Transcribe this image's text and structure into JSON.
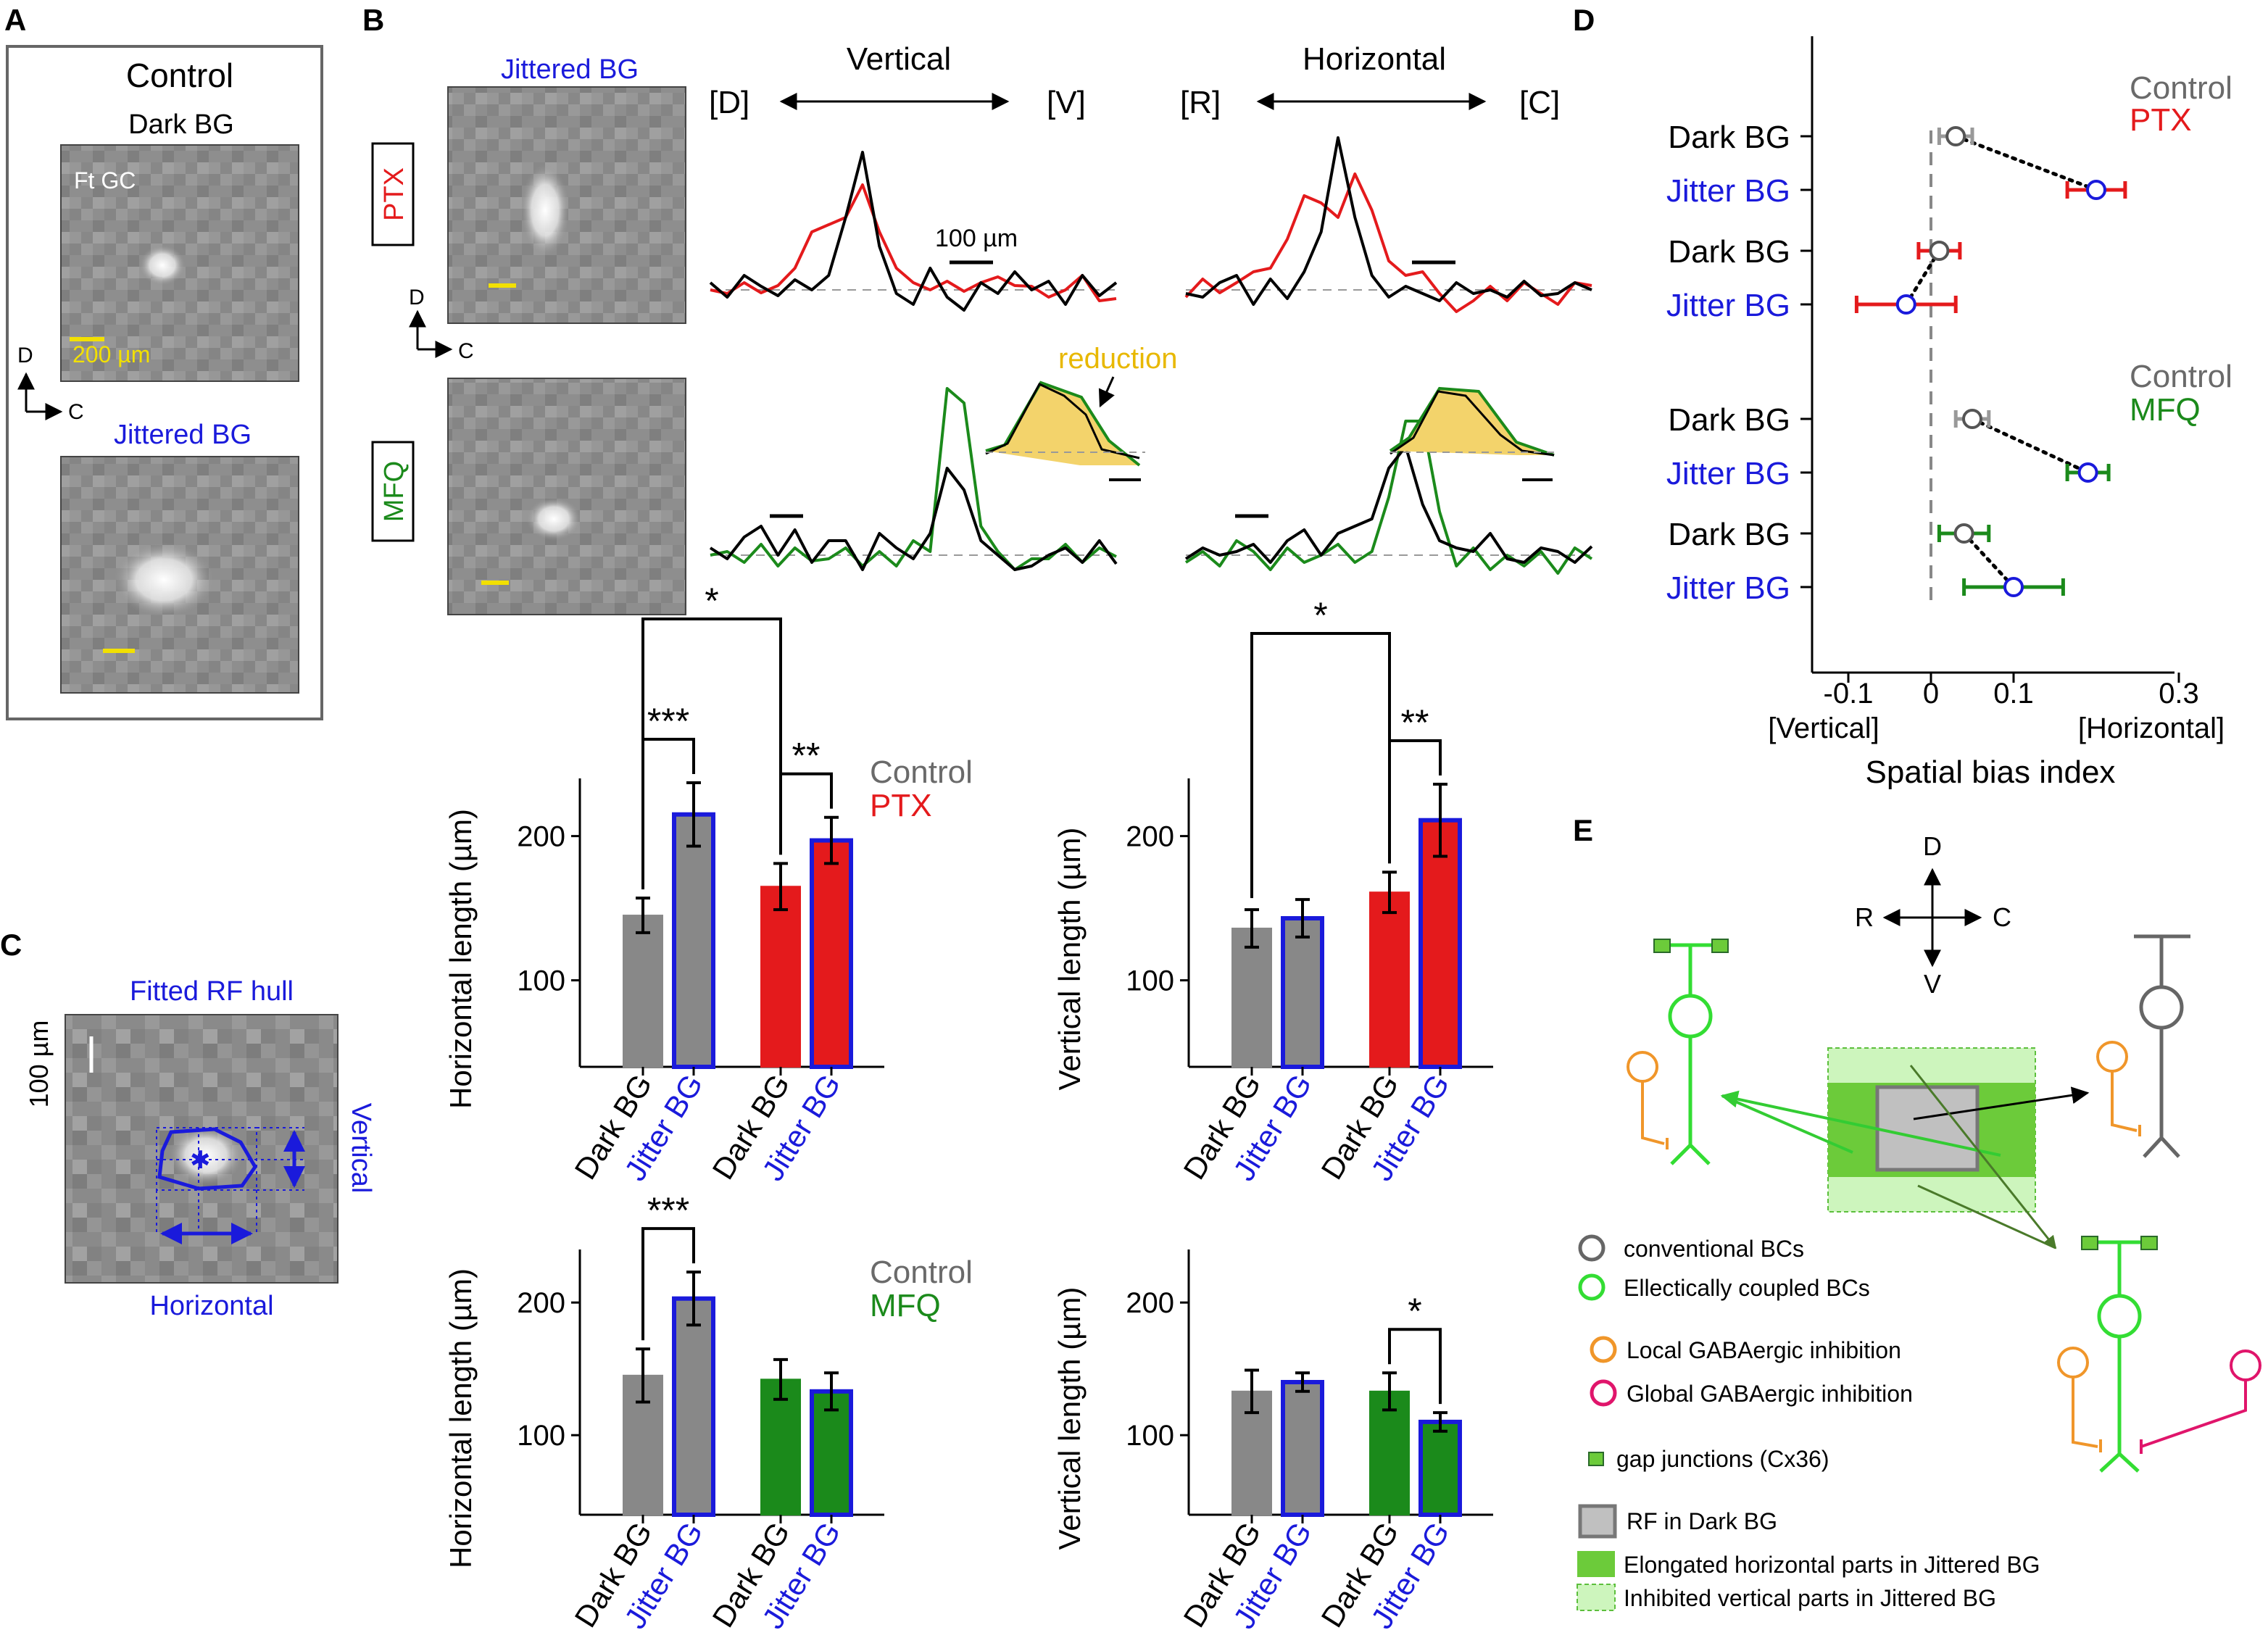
{
  "panels": {
    "a": "A",
    "b": "B",
    "c": "C",
    "d": "D",
    "e": "E"
  },
  "colors": {
    "control": "#6a6a6a",
    "ptx": "#e41a1c",
    "mfq": "#1b8a1b",
    "jitter": "#1a1adb",
    "yellow": "#f2e000",
    "reduction": "#e8b800",
    "pink": "#e0156b",
    "orange": "#f0962a",
    "green_bc": "#33dd33"
  },
  "panel_a": {
    "title": "Control",
    "dark_label": "Dark BG",
    "cell_label": "Ft GC",
    "scale_label": "200 µm",
    "jitter_label": "Jittered BG",
    "axis_d": "D",
    "axis_c": "C"
  },
  "panel_b": {
    "jitter_title": "Jittered BG",
    "ptx": "PTX",
    "mfq": "MFQ",
    "axis_d": "D",
    "axis_c": "C",
    "vertical": "Vertical",
    "horizontal": "Horizontal",
    "d": "[D]",
    "v": "[V]",
    "r": "[R]",
    "c": "[C]",
    "scale_label": "100 µm",
    "reduction": "reduction"
  },
  "panel_c": {
    "title": "Fitted RF hull",
    "scale_label": "100 µm",
    "vertical": "Vertical",
    "horizontal": "Horizontal"
  },
  "panel_d": {
    "legend1_control": "Control",
    "legend1_ptx": "PTX",
    "legend2_control": "Control",
    "legend2_mfq": "MFQ",
    "row_labels": [
      "Dark BG",
      "Jitter BG",
      "Dark BG",
      "Jitter BG",
      "Dark BG",
      "Jitter BG",
      "Dark BG",
      "Jitter BG"
    ],
    "ticks": [
      "-0.1",
      "0",
      "0.1",
      "0.3"
    ],
    "left_word": "[Vertical]",
    "right_word": "[Horizontal]",
    "xlabel": "Spatial bias index"
  },
  "panel_e": {
    "d": "D",
    "v": "V",
    "r": "R",
    "c": "C",
    "legend": [
      "conventional BCs",
      "Ellectically coupled BCs",
      "Local GABAergic inhibition",
      "Global GABAergic inhibition",
      "gap junctions (Cx36)",
      "RF in Dark BG",
      "Elongated horizontal parts in Jittered BG",
      "Inhibited vertical parts in Jittered BG"
    ]
  },
  "chart_data": [
    {
      "type": "line",
      "title": "PTX Vertical",
      "x_from": "[D]",
      "x_to": "[V]",
      "series": [
        {
          "name": "Control"
        },
        {
          "name": "PTX"
        }
      ]
    },
    {
      "type": "line",
      "title": "PTX Horizontal",
      "x_from": "[R]",
      "x_to": "[C]",
      "series": [
        {
          "name": "Control"
        },
        {
          "name": "PTX"
        }
      ]
    },
    {
      "type": "line",
      "title": "MFQ Vertical",
      "series": [
        {
          "name": "Control"
        },
        {
          "name": "MFQ"
        }
      ]
    },
    {
      "type": "line",
      "title": "MFQ Horizontal",
      "series": [
        {
          "name": "Control"
        },
        {
          "name": "MFQ"
        }
      ]
    },
    {
      "type": "bar",
      "ylabel": "Horizontal length (µm)",
      "yticks": [
        "100",
        "200"
      ],
      "ylim": [
        40,
        240
      ],
      "legend": [
        "Control",
        "PTX"
      ],
      "categories": [
        "Dark BG",
        "Jitter BG",
        "Dark BG",
        "Jitter BG"
      ],
      "values": [
        145,
        215,
        165,
        197
      ],
      "errors": [
        12,
        22,
        16,
        16
      ],
      "significance": [
        {
          "label": "***",
          "bars": [
            0,
            1
          ]
        },
        {
          "label": "**",
          "bars": [
            2,
            3
          ]
        },
        {
          "label": "*",
          "bars": [
            0,
            2
          ]
        }
      ]
    },
    {
      "type": "bar",
      "ylabel": "Vertical length (µm)",
      "yticks": [
        "100",
        "200"
      ],
      "ylim": [
        40,
        240
      ],
      "categories": [
        "Dark BG",
        "Jitter BG",
        "Dark BG",
        "Jitter BG"
      ],
      "values": [
        136,
        143,
        161,
        211
      ],
      "errors": [
        13,
        13,
        14,
        25
      ],
      "significance": [
        {
          "label": "**",
          "bars": [
            2,
            3
          ]
        },
        {
          "label": "*",
          "bars": [
            0,
            2
          ]
        }
      ]
    },
    {
      "type": "bar",
      "ylabel": "Horizontal length (µm)",
      "yticks": [
        "100",
        "200"
      ],
      "ylim": [
        40,
        240
      ],
      "legend": [
        "Control",
        "MFQ"
      ],
      "categories": [
        "Dark BG",
        "Jitter BG",
        "Dark BG",
        "Jitter BG"
      ],
      "values": [
        145,
        203,
        142,
        133
      ],
      "errors": [
        20,
        20,
        15,
        14
      ],
      "significance": [
        {
          "label": "***",
          "bars": [
            0,
            1
          ]
        }
      ]
    },
    {
      "type": "bar",
      "ylabel": "Vertical length (µm)",
      "yticks": [
        "100",
        "200"
      ],
      "ylim": [
        40,
        240
      ],
      "categories": [
        "Dark BG",
        "Jitter BG",
        "Dark BG",
        "Jitter BG"
      ],
      "values": [
        133,
        140,
        133,
        110
      ],
      "errors": [
        16,
        7,
        14,
        7
      ],
      "significance": [
        {
          "label": "*",
          "bars": [
            2,
            3
          ]
        }
      ]
    },
    {
      "type": "scatter",
      "xlabel": "Spatial bias index",
      "xlim": [
        -0.15,
        0.3
      ],
      "series": [
        {
          "name": "PTX group 1",
          "x": [
            0.03,
            0.2
          ],
          "xerr": [
            0.02,
            0.035
          ]
        },
        {
          "name": "PTX group 2",
          "x": [
            0.01,
            -0.03
          ],
          "xerr": [
            0.025,
            0.06
          ]
        },
        {
          "name": "MFQ group 1",
          "x": [
            0.05,
            0.19
          ],
          "xerr": [
            0.02,
            0.025
          ]
        },
        {
          "name": "MFQ group 2",
          "x": [
            0.04,
            0.1
          ],
          "xerr": [
            0.03,
            0.06
          ]
        }
      ]
    }
  ]
}
